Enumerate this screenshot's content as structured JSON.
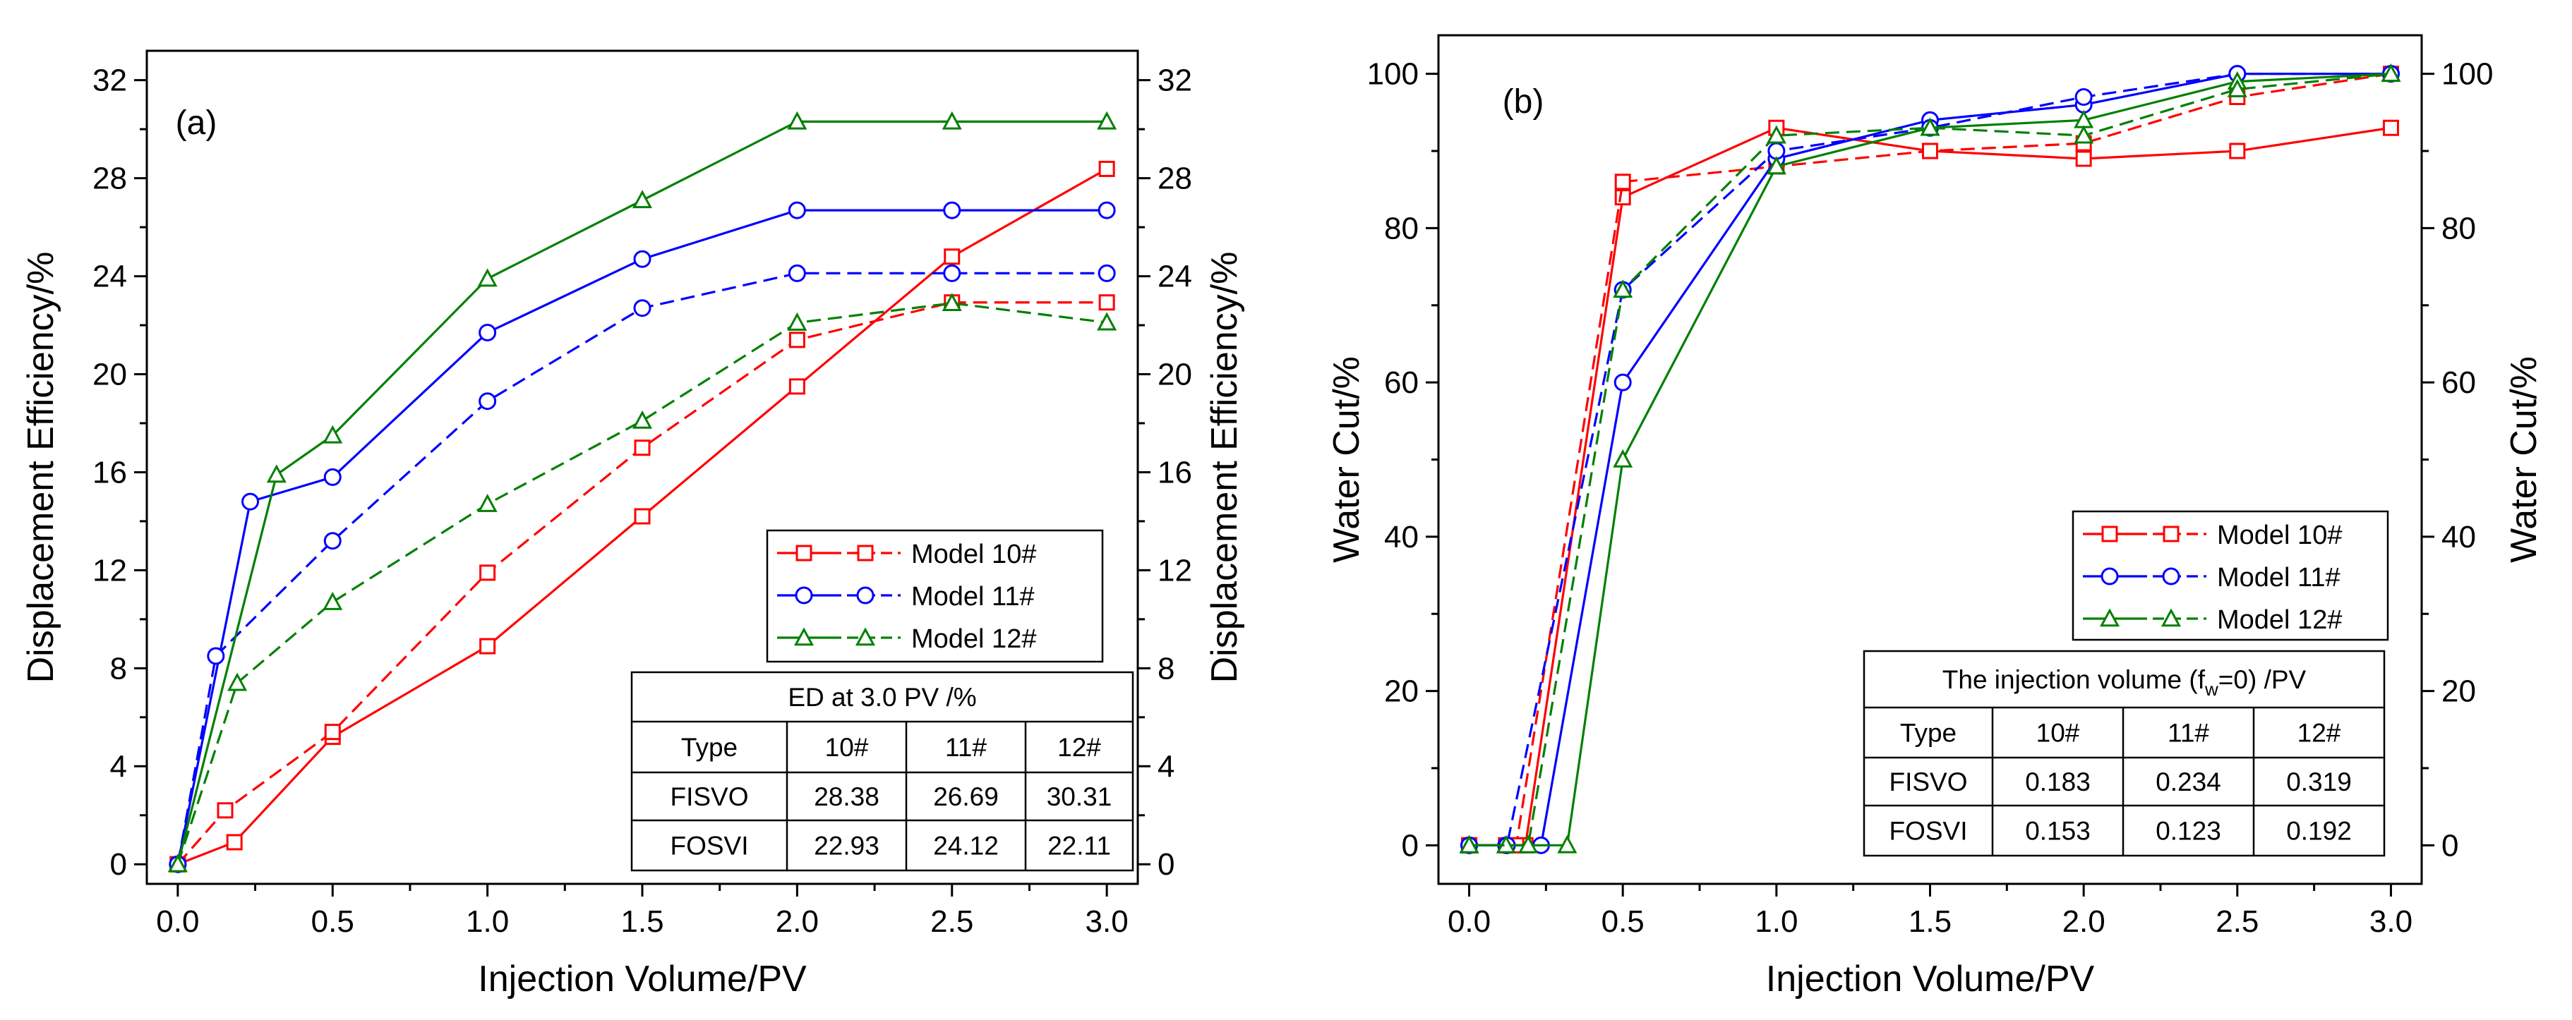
{
  "colors": {
    "model10": "#ff0000",
    "model11": "#0000ff",
    "model12": "#008000",
    "axis": "#000000"
  },
  "chart_data": [
    {
      "panel_label": "(a)",
      "type": "line",
      "xlabel": "Injection Volume/PV",
      "ylabel": "Displacement Efficiency/%",
      "ylabel_right": "Displacement Efficiency/%",
      "xlim": [
        -0.1,
        3.1
      ],
      "ylim": [
        -0.8,
        33.2
      ],
      "xticks": [
        0.0,
        0.5,
        1.0,
        1.5,
        2.0,
        2.5,
        3.0
      ],
      "xtick_labels": [
        "0.0",
        "0.5",
        "1.0",
        "1.5",
        "2.0",
        "2.5",
        "3.0"
      ],
      "yticks": [
        0,
        4,
        8,
        12,
        16,
        20,
        24,
        28,
        32
      ],
      "ytick_labels": [
        "0",
        "4",
        "8",
        "12",
        "16",
        "20",
        "24",
        "28",
        "32"
      ],
      "legend": [
        "Model 10#",
        "Model 11#",
        "Model 12#"
      ],
      "series": [
        {
          "name": "Model 10# FISVO",
          "model": "model10",
          "dash": "solid",
          "marker": "square",
          "x": [
            0,
            0.183,
            0.5,
            1.0,
            1.5,
            2.0,
            2.5,
            3.0
          ],
          "y": [
            0,
            0.9,
            5.2,
            8.9,
            14.2,
            19.5,
            24.8,
            28.38
          ]
        },
        {
          "name": "Model 10# FOSVI",
          "model": "model10",
          "dash": "dashed",
          "marker": "square",
          "x": [
            0,
            0.153,
            0.5,
            1.0,
            1.5,
            2.0,
            2.5,
            3.0
          ],
          "y": [
            0,
            2.2,
            5.4,
            11.9,
            17.0,
            21.4,
            22.93,
            22.93
          ]
        },
        {
          "name": "Model 11# FISVO",
          "model": "model11",
          "dash": "solid",
          "marker": "circle",
          "x": [
            0,
            0.234,
            0.5,
            1.0,
            1.5,
            2.0,
            2.5,
            3.0
          ],
          "y": [
            0,
            14.8,
            15.8,
            21.7,
            24.7,
            26.69,
            26.69,
            26.69
          ]
        },
        {
          "name": "Model 11# FOSVI",
          "model": "model11",
          "dash": "dashed",
          "marker": "circle",
          "x": [
            0,
            0.123,
            0.5,
            1.0,
            1.5,
            2.0,
            2.5,
            3.0
          ],
          "y": [
            0,
            8.5,
            13.2,
            18.9,
            22.7,
            24.12,
            24.12,
            24.12
          ]
        },
        {
          "name": "Model 12# FISVO",
          "model": "model12",
          "dash": "solid",
          "marker": "triangle",
          "x": [
            0,
            0.319,
            0.5,
            1.0,
            1.5,
            2.0,
            2.5,
            3.0
          ],
          "y": [
            0,
            15.9,
            17.5,
            23.9,
            27.1,
            30.31,
            30.31,
            30.31
          ]
        },
        {
          "name": "Model 12# FOSVI",
          "model": "model12",
          "dash": "dashed",
          "marker": "triangle",
          "x": [
            0,
            0.192,
            0.5,
            1.0,
            1.5,
            2.0,
            2.5,
            3.0
          ],
          "y": [
            0,
            7.4,
            10.7,
            14.7,
            18.1,
            22.1,
            22.9,
            22.11
          ]
        }
      ],
      "table": {
        "title": "ED at 3.0 PV /%",
        "title_sub": "",
        "title_rest": "",
        "header": [
          "Type",
          "10#",
          "11#",
          "12#"
        ],
        "rows": [
          [
            "FISVO",
            "28.38",
            "26.69",
            "30.31"
          ],
          [
            "FOSVI",
            "22.93",
            "24.12",
            "22.11"
          ]
        ]
      }
    },
    {
      "panel_label": "(b)",
      "type": "line",
      "xlabel": "Injection Volume/PV",
      "ylabel": "Water Cut/%",
      "ylabel_right": "Water Cut/%",
      "xlim": [
        -0.1,
        3.1
      ],
      "ylim": [
        -5,
        105
      ],
      "xticks": [
        0.0,
        0.5,
        1.0,
        1.5,
        2.0,
        2.5,
        3.0
      ],
      "xtick_labels": [
        "0.0",
        "0.5",
        "1.0",
        "1.5",
        "2.0",
        "2.5",
        "3.0"
      ],
      "yticks": [
        0,
        20,
        40,
        60,
        80,
        100
      ],
      "ytick_labels": [
        "0",
        "20",
        "40",
        "60",
        "80",
        "100"
      ],
      "legend": [
        "Model 10#",
        "Model 11#",
        "Model 12#"
      ],
      "series": [
        {
          "name": "Model 10# FISVO",
          "model": "model10",
          "dash": "solid",
          "marker": "square",
          "x": [
            0,
            0.12,
            0.183,
            0.5,
            1.0,
            1.5,
            2.0,
            2.5,
            3.0
          ],
          "y": [
            0,
            0,
            0,
            84,
            93,
            90,
            89,
            90,
            93
          ]
        },
        {
          "name": "Model 10# FOSVI",
          "model": "model10",
          "dash": "dashed",
          "marker": "square",
          "x": [
            0,
            0.153,
            0.5,
            1.0,
            1.5,
            2.0,
            2.5,
            3.0
          ],
          "y": [
            0,
            0,
            86,
            88,
            90,
            91,
            97,
            100
          ]
        },
        {
          "name": "Model 11# FISVO",
          "model": "model11",
          "dash": "solid",
          "marker": "circle",
          "x": [
            0,
            0.12,
            0.234,
            0.5,
            1.0,
            1.5,
            2.0,
            2.5,
            3.0
          ],
          "y": [
            0,
            0,
            0,
            60,
            89,
            94,
            96,
            100,
            100
          ]
        },
        {
          "name": "Model 11# FOSVI",
          "model": "model11",
          "dash": "dashed",
          "marker": "circle",
          "x": [
            0,
            0.123,
            0.5,
            1.0,
            1.5,
            2.0,
            2.5,
            3.0
          ],
          "y": [
            0,
            0,
            72,
            90,
            93,
            97,
            100,
            100
          ]
        },
        {
          "name": "Model 12# FISVO",
          "model": "model12",
          "dash": "solid",
          "marker": "triangle",
          "x": [
            0,
            0.12,
            0.319,
            0.5,
            1.0,
            1.5,
            2.0,
            2.5,
            3.0
          ],
          "y": [
            0,
            0,
            0,
            50,
            88,
            93,
            94,
            99,
            100
          ]
        },
        {
          "name": "Model 12# FOSVI",
          "model": "model12",
          "dash": "dashed",
          "marker": "triangle",
          "x": [
            0,
            0.192,
            0.5,
            1.0,
            1.5,
            2.0,
            2.5,
            3.0
          ],
          "y": [
            0,
            0,
            72,
            92,
            93,
            92,
            98,
            100
          ]
        }
      ],
      "table": {
        "title": "The injection volume (f",
        "title_sub": "w",
        "title_rest": "=0) /PV",
        "header": [
          "Type",
          "10#",
          "11#",
          "12#"
        ],
        "rows": [
          [
            "FISVO",
            "0.183",
            "0.234",
            "0.319"
          ],
          [
            "FOSVI",
            "0.153",
            "0.123",
            "0.192"
          ]
        ]
      }
    }
  ]
}
